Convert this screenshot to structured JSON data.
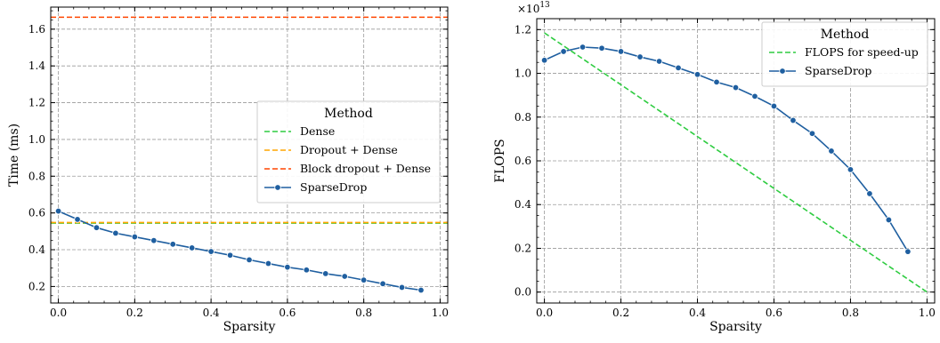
{
  "chart_data": [
    {
      "type": "line",
      "xlabel": "Sparsity",
      "ylabel": "Time (ms)",
      "xlim": [
        -0.02,
        1.02
      ],
      "ylim": [
        0.11,
        1.72
      ],
      "grid": true,
      "legend_title": "Method",
      "legend_position": "center-right",
      "xticks": [
        0.0,
        0.2,
        0.4,
        0.6,
        0.8,
        1.0
      ],
      "xtick_labels": [
        "0.0",
        "0.2",
        "0.4",
        "0.6",
        "0.8",
        "1.0"
      ],
      "yticks": [
        0.2,
        0.4,
        0.6,
        0.8,
        1.0,
        1.2,
        1.4,
        1.6
      ],
      "ytick_labels": [
        "0.2",
        "0.4",
        "0.6",
        "0.8",
        "1.0",
        "1.2",
        "1.4",
        "1.6"
      ],
      "series": [
        {
          "name": "Dense",
          "style": "dashed",
          "color": "#2ecc40",
          "x": [
            -0.02,
            1.02
          ],
          "y": [
            0.545,
            0.545
          ]
        },
        {
          "name": "Dropout + Dense",
          "style": "dashed",
          "color": "#ffa500",
          "x": [
            -0.02,
            1.02
          ],
          "y": [
            0.548,
            0.548
          ]
        },
        {
          "name": "Block dropout + Dense",
          "style": "dashed",
          "color": "#ff4500",
          "x": [
            -0.02,
            1.02
          ],
          "y": [
            1.665,
            1.665
          ]
        },
        {
          "name": "SparseDrop",
          "style": "solid-marker",
          "color": "#1f5fa0",
          "x": [
            0.0,
            0.05,
            0.1,
            0.15,
            0.2,
            0.25,
            0.3,
            0.35,
            0.4,
            0.45,
            0.5,
            0.55,
            0.6,
            0.65,
            0.7,
            0.75,
            0.8,
            0.85,
            0.9,
            0.95
          ],
          "y": [
            0.61,
            0.565,
            0.52,
            0.49,
            0.47,
            0.45,
            0.43,
            0.41,
            0.39,
            0.37,
            0.345,
            0.325,
            0.305,
            0.29,
            0.27,
            0.255,
            0.235,
            0.215,
            0.195,
            0.18
          ]
        }
      ]
    },
    {
      "type": "line",
      "xlabel": "Sparsity",
      "ylabel": "FLOPS",
      "scale_exponent": "×10",
      "scale_power": "13",
      "xlim": [
        -0.02,
        1.02
      ],
      "ylim": [
        -0.05,
        1.25
      ],
      "grid": true,
      "legend_title": "Method",
      "legend_position": "upper-right",
      "xticks": [
        0.0,
        0.2,
        0.4,
        0.6,
        0.8,
        1.0
      ],
      "xtick_labels": [
        "0.0",
        "0.2",
        "0.4",
        "0.6",
        "0.8",
        "1.0"
      ],
      "yticks": [
        0.0,
        0.2,
        0.4,
        0.6,
        0.8,
        1.0,
        1.2
      ],
      "ytick_labels": [
        "0.0",
        "0.2",
        "0.4",
        "0.6",
        "0.8",
        "1.0",
        "1.2"
      ],
      "series": [
        {
          "name": "FLOPS for speed-up",
          "style": "dashed",
          "color": "#2ecc40",
          "x": [
            0.0,
            1.0
          ],
          "y": [
            1.185,
            0.0
          ]
        },
        {
          "name": "SparseDrop",
          "style": "solid-marker",
          "color": "#1f5fa0",
          "x": [
            0.0,
            0.05,
            0.1,
            0.15,
            0.2,
            0.25,
            0.3,
            0.35,
            0.4,
            0.45,
            0.5,
            0.55,
            0.6,
            0.65,
            0.7,
            0.75,
            0.8,
            0.85,
            0.9,
            0.95
          ],
          "y": [
            1.06,
            1.1,
            1.12,
            1.115,
            1.1,
            1.075,
            1.055,
            1.025,
            0.995,
            0.96,
            0.935,
            0.895,
            0.85,
            0.785,
            0.725,
            0.645,
            0.56,
            0.45,
            0.33,
            0.185
          ]
        }
      ]
    }
  ]
}
